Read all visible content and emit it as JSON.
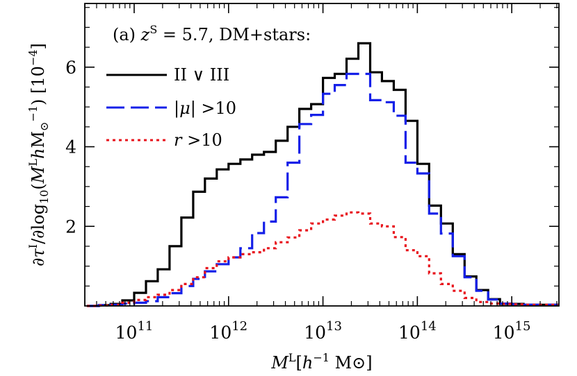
{
  "chart_data": {
    "type": "line",
    "step": true,
    "panel_label": "(a)  z^S = 5.7, DM+stars:",
    "panel_parts": {
      "prefix": "(a)  ",
      "var": "z",
      "sup": "S",
      "suffix": " = 5.7, DM+stars:"
    },
    "xlabel_parts": {
      "var": "M",
      "sup": "L",
      "open": "[",
      "unit_var": "h",
      "unit_exp": "−1",
      "unit_rest": " M",
      "odot": "⊙",
      "close": "]"
    },
    "ylabel": "∂τ^I/∂log10(M^L hM⊙^−1) [10^−4]",
    "ylabel_parts": {
      "a": "∂",
      "tau": "τ",
      "tau_sup": "I",
      "b": "/∂log",
      "log_sub": "10",
      "c": "(",
      "m": "M",
      "m_sup": "L",
      "h": "h",
      "msun": "M",
      "msun_sub": "⊙",
      "msun_sup": "−1",
      "d": ") [10",
      "pow": "−4",
      "e": "]"
    },
    "x_scale": "log",
    "xlim": [
      30000000000.0,
      3160000000000000.0
    ],
    "ylim": [
      0,
      7.6
    ],
    "x_ticks": [
      {
        "value": 100000000000.0,
        "base": "10",
        "exp": "11"
      },
      {
        "value": 1000000000000.0,
        "base": "10",
        "exp": "12"
      },
      {
        "value": 10000000000000.0,
        "base": "10",
        "exp": "13"
      },
      {
        "value": 100000000000000.0,
        "base": "10",
        "exp": "14"
      },
      {
        "value": 1000000000000000.0,
        "base": "10",
        "exp": "15"
      }
    ],
    "y_ticks": [
      {
        "value": 2,
        "label": "2"
      },
      {
        "value": 4,
        "label": "4"
      },
      {
        "value": 6,
        "label": "6"
      }
    ],
    "grid": false,
    "legend_position": "top-left",
    "bin_edges_log10": [
      10.5,
      10.625,
      10.75,
      10.875,
      11.0,
      11.125,
      11.25,
      11.375,
      11.5,
      11.625,
      11.75,
      11.875,
      12.0,
      12.125,
      12.25,
      12.375,
      12.5,
      12.625,
      12.75,
      12.875,
      13.0,
      13.125,
      13.25,
      13.375,
      13.5,
      13.625,
      13.75,
      13.875,
      14.0,
      14.125,
      14.25,
      14.375,
      14.5,
      14.625,
      14.75,
      14.875,
      15.0,
      15.125,
      15.25,
      15.375,
      15.5
    ],
    "series": [
      {
        "name": "II ∨ III",
        "name_parts": {
          "text": "II ∨ III"
        },
        "color": "#000000",
        "dash": "solid",
        "values": [
          0.0,
          0.02,
          0.05,
          0.14,
          0.33,
          0.62,
          0.92,
          1.5,
          2.22,
          2.87,
          3.2,
          3.43,
          3.57,
          3.68,
          3.8,
          3.87,
          4.15,
          4.5,
          4.95,
          5.07,
          5.73,
          5.83,
          6.21,
          6.6,
          5.87,
          5.65,
          5.43,
          4.65,
          3.57,
          2.52,
          2.07,
          1.3,
          0.74,
          0.4,
          0.17,
          0.05,
          0.05,
          0.03,
          0.03,
          0.03
        ]
      },
      {
        "name": "|μ| >10",
        "name_parts": {
          "pre": "|",
          "var": "μ",
          "post": "| >10"
        },
        "color": "#1520e8",
        "dash": "longdash",
        "values": [
          0.0,
          0.02,
          0.03,
          0.06,
          0.08,
          0.12,
          0.22,
          0.32,
          0.5,
          0.68,
          0.87,
          1.05,
          1.22,
          1.45,
          1.83,
          2.12,
          2.73,
          3.6,
          4.57,
          4.8,
          5.33,
          5.55,
          5.83,
          5.83,
          5.17,
          5.12,
          4.78,
          3.6,
          3.33,
          2.32,
          1.82,
          1.25,
          0.72,
          0.38,
          0.16,
          0.06,
          0.04,
          0.03,
          0.03,
          0.03
        ]
      },
      {
        "name": "r >10",
        "name_parts": {
          "var": "r",
          "post": " >10"
        },
        "color": "#e8141c",
        "dash": "dotted",
        "values": [
          0.0,
          0.01,
          0.03,
          0.08,
          0.15,
          0.22,
          0.28,
          0.4,
          0.55,
          0.72,
          0.95,
          1.12,
          1.22,
          1.3,
          1.35,
          1.45,
          1.6,
          1.72,
          1.9,
          2.07,
          2.17,
          2.27,
          2.35,
          2.32,
          2.07,
          2.0,
          1.73,
          1.4,
          1.25,
          0.82,
          0.55,
          0.38,
          0.2,
          0.1,
          0.06,
          0.05,
          0.04,
          0.03,
          0.03,
          0.03
        ]
      }
    ]
  }
}
